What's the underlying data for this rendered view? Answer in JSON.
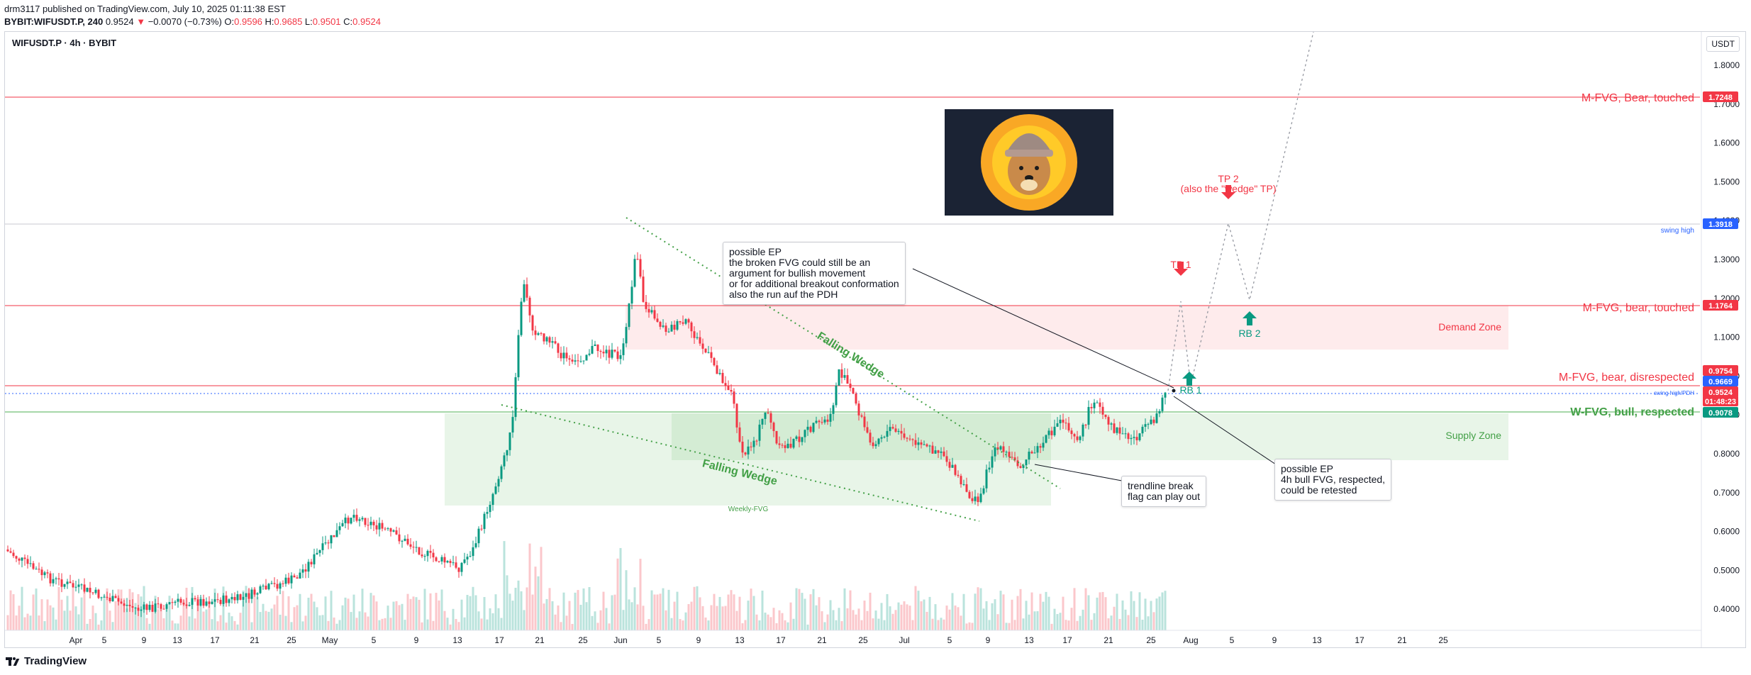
{
  "header": {
    "publisher_line": "drm3117 published on TradingView.com, July 10, 2025 01:11:38 EST",
    "symbol": "BYBIT:WIFUSDT.P, 240",
    "last": "0.9524",
    "change": "−0.0070 (−0.73%)",
    "o_label": "O:",
    "o": "0.9596",
    "h_label": "H:",
    "h": "0.9685",
    "l_label": "L:",
    "l": "0.9501",
    "c_label": "C:",
    "c": "0.9524"
  },
  "chart_title": "WIFUSDT.P · 4h · BYBIT",
  "currency": "USDT",
  "price_axis": [
    "1.8000",
    "1.7000",
    "1.6000",
    "1.5000",
    "1.4000",
    "1.3000",
    "1.2000",
    "1.1000",
    "1.0000",
    "0.9000",
    "0.8000",
    "0.7000",
    "0.6000",
    "0.5000",
    "0.4000"
  ],
  "price_tags": [
    {
      "value": "1.7248",
      "color": "#f23645"
    },
    {
      "value": "1.3918",
      "color": "#2962ff"
    },
    {
      "value": "1.1764",
      "color": "#f23645"
    },
    {
      "value": "0.9754",
      "color": "#f23645"
    },
    {
      "value": "0.9669",
      "color": "#2962ff"
    },
    {
      "value": "0.9524",
      "color": "#f23645"
    },
    {
      "value": "01:48:23",
      "color": "#f23645"
    },
    {
      "value": "0.9078",
      "color": "#089981"
    }
  ],
  "time_axis": [
    "Apr",
    "5",
    "9",
    "13",
    "17",
    "21",
    "25",
    "May",
    "5",
    "9",
    "13",
    "17",
    "21",
    "25",
    "Jun",
    "5",
    "9",
    "13",
    "17",
    "21",
    "25",
    "Jul",
    "5",
    "9",
    "13",
    "17",
    "21",
    "25",
    "Aug",
    "5",
    "9",
    "13",
    "17",
    "21",
    "25"
  ],
  "levels": {
    "m_fvg_bear_touched_top": "M-FVG, Bear, touched",
    "swing_high": "swing high",
    "m_fvg_bear_touched": "M-FVG, bear, touched",
    "m_fvg_bear_disrespected": "M-FVG, bear, disrespected",
    "swing_high_pdh": "swing high/PDH",
    "w_fvg_bull_respected": "W-FVG, bull, respected"
  },
  "zones": {
    "demand": "Demand Zone",
    "supply": "Supply Zone",
    "weekly_fvg": "Weekly-FVG"
  },
  "drawings": {
    "falling_wedge_upper": "Falling Wedge",
    "falling_wedge_lower": "Falling Wedge",
    "tp1": "TP 1",
    "tp2": "TP 2",
    "tp2_sub": "(also the \"wedge\" TP)",
    "rb1": "RB 1",
    "rb2": "RB 2"
  },
  "notes": {
    "ep_top": "possible EP\nthe broken FVG could still be an\nargument for bullish movement\nor for additional breakout conformation\nalso the run auf the PDH",
    "trendline": "trendline break\nflag can play out",
    "ep_bottom": "possible EP\n4h bull FVG, respected,\ncould be retested"
  },
  "footer": {
    "brand": "TradingView"
  },
  "colors": {
    "bull": "#089981",
    "bear": "#f23645",
    "blue": "#2962ff",
    "wedge": "#43a047"
  }
}
